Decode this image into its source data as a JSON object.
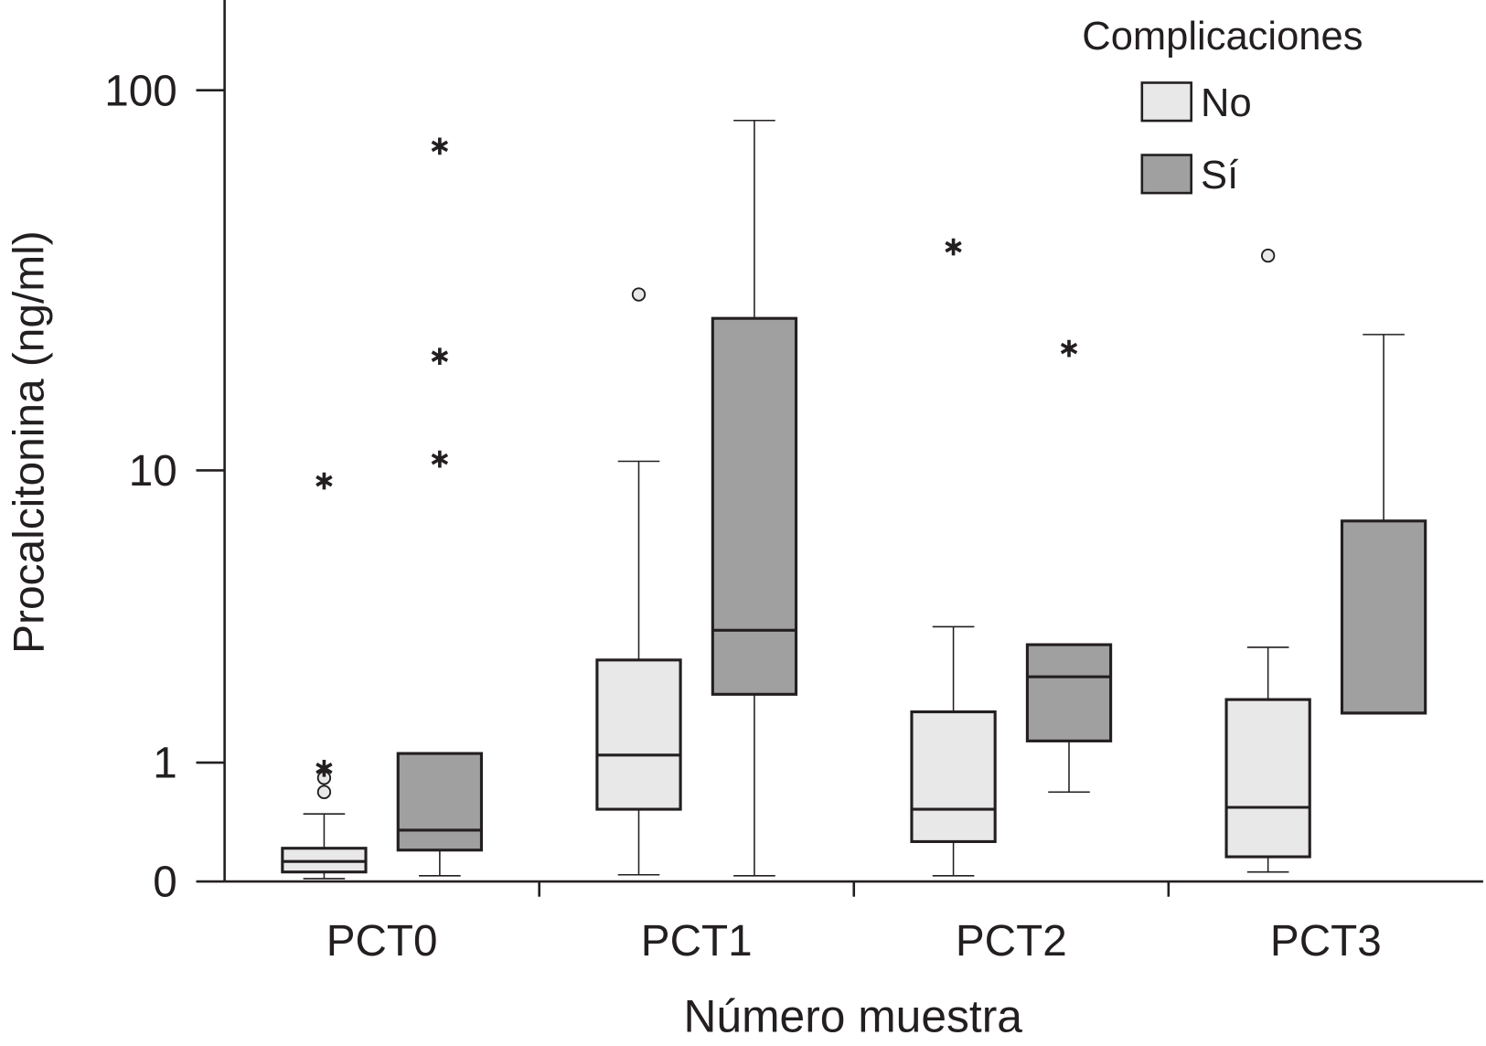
{
  "chart_data": {
    "type": "box",
    "x_label": "Número muestra",
    "y_label": "Procalcitonina (ng/ml)",
    "legend_title": "Complicaciones",
    "legend_position": "upper right",
    "scale": "log1p",
    "categories": [
      "PCT0",
      "PCT1",
      "PCT2",
      "PCT3"
    ],
    "ylim": [
      0,
      170
    ],
    "yticks": [
      0,
      1,
      10,
      100
    ],
    "series": [
      {
        "name": "No",
        "color": "#e8e8e8",
        "boxes": [
          {
            "min": 0.017,
            "q1": 0.057,
            "median": 0.124,
            "q3": 0.214,
            "max": 0.483,
            "outliers": [
              0.685,
              0.83
            ],
            "extremes": [
              0.935,
              9.34
            ]
          },
          {
            "min": 0.04,
            "q1": 0.524,
            "median": 1.09,
            "q3": 2.64,
            "max": 10.6,
            "outliers": [
              29.7
            ],
            "extremes": []
          },
          {
            "min": 0.034,
            "q1": 0.262,
            "median": 0.524,
            "q3": 1.69,
            "max": 3.42,
            "outliers": [],
            "extremes": [
              39.5
            ]
          },
          {
            "min": 0.057,
            "q1": 0.155,
            "median": 0.541,
            "q3": 1.89,
            "max": 2.92,
            "outliers": [
              37.5
            ],
            "extremes": []
          }
        ]
      },
      {
        "name": "Sí",
        "color": "#a0a0a0",
        "boxes": [
          {
            "min": 0.034,
            "q1": 0.201,
            "median": 0.349,
            "q3": 1.11,
            "max": 1.11,
            "outliers": [],
            "extremes": [
              10.75,
              20.4,
              71.9
            ]
          },
          {
            "min": 0.034,
            "q1": 1.98,
            "median": 3.33,
            "q3": 25.7,
            "max": 83.7,
            "outliers": [],
            "extremes": []
          },
          {
            "min": 0.685,
            "q1": 1.27,
            "median": 2.3,
            "q3": 2.98,
            "max": 2.98,
            "outliers": [],
            "extremes": [
              21.4
            ]
          },
          {
            "min": 1.67,
            "q1": 1.67,
            "median": 1.67,
            "q3": 7.19,
            "max": 23.3,
            "outliers": [],
            "extremes": []
          }
        ]
      }
    ]
  }
}
